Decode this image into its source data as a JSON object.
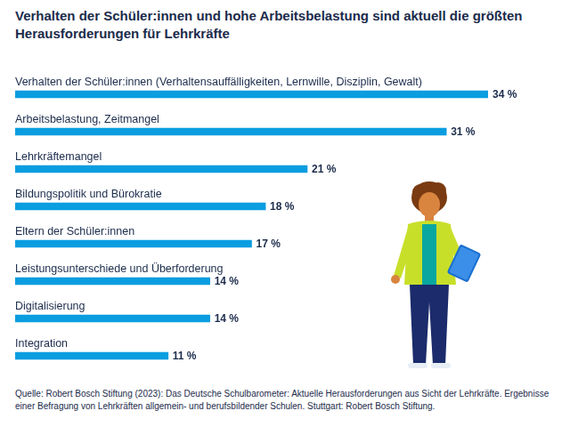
{
  "chart_data": {
    "type": "bar",
    "orientation": "horizontal",
    "title": "Verhalten der Schüler:innen und hohe Arbeitsbelastung sind aktuell die größten Herausforderungen für Lehrkräfte",
    "source": "Quelle: Robert Bosch Stiftung (2023): Das Deutsche Schulbarometer: Aktuelle Herausforderungen aus Sicht der Lehrkräfte. Ergebnisse einer Befragung von Lehrkräften allgemein- und berufsbildender Schulen. Stuttgart: Robert Bosch Stiftung.",
    "categories": [
      "Verhalten der Schüler:innen (Verhaltensauffälligkeiten, Lernwille, Disziplin, Gewalt)",
      "Arbeitsbelastung, Zeitmangel",
      "Lehrkräftemangel",
      "Bildungspolitik und Bürokratie",
      "Eltern der Schüler:innen",
      "Leistungsunterschiede und Überforderung",
      "Digitalisierung",
      "Integration"
    ],
    "values": [
      34,
      31,
      21,
      18,
      17,
      14,
      14,
      11
    ],
    "value_labels": [
      "34 %",
      "31 %",
      "21 %",
      "18 %",
      "17 %",
      "14 %",
      "14 %",
      "11 %"
    ],
    "color": "#0a9de0",
    "xlim": [
      0,
      34
    ],
    "data_labels": true,
    "tick_labels": false,
    "grid": false
  }
}
